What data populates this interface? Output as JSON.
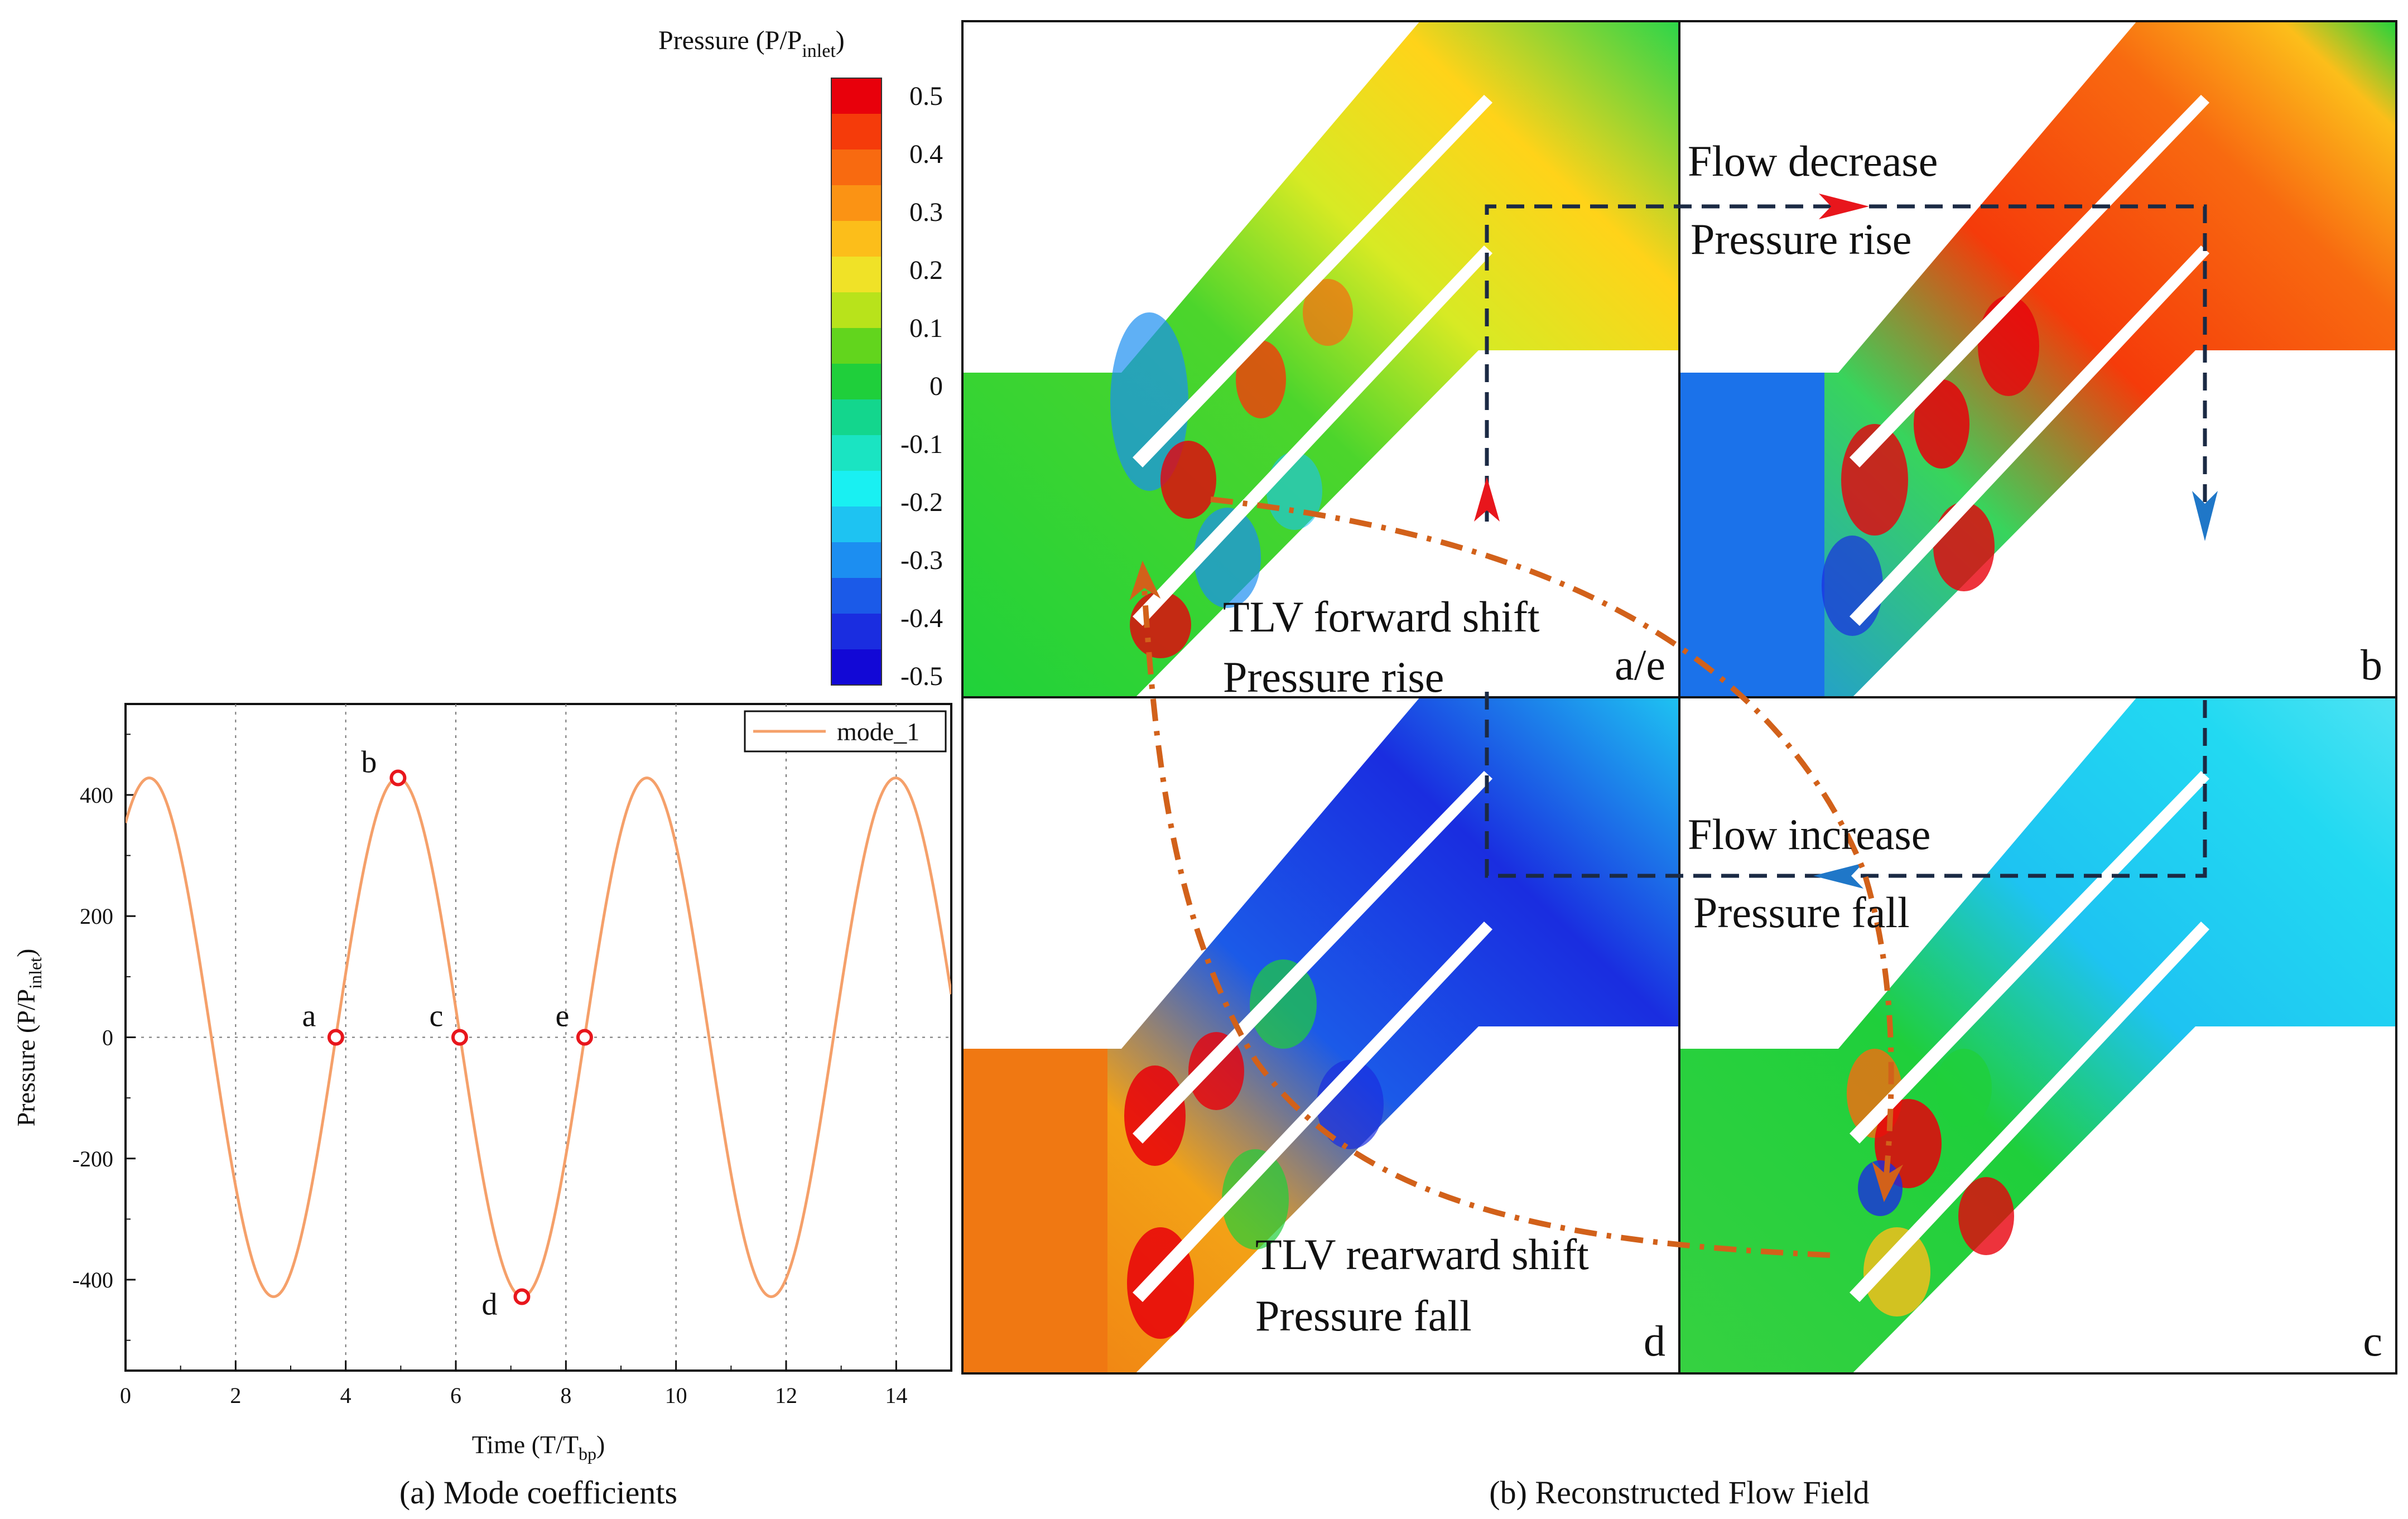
{
  "colorbar": {
    "title_main": "Pressure (P/P",
    "title_sub": "inlet",
    "title_close": ")",
    "ticks": [
      "0.5",
      "0.4",
      "0.3",
      "0.2",
      "0.1",
      "0",
      "-0.1",
      "-0.2",
      "-0.3",
      "-0.4",
      "-0.5"
    ],
    "colors": [
      "#e8000b",
      "#f53b0a",
      "#f86a10",
      "#fb9314",
      "#fcbe1a",
      "#f0e227",
      "#b8e31b",
      "#62d51d",
      "#1fcf3b",
      "#13d68d",
      "#1ae4c2",
      "#19f0f2",
      "#1ec3f2",
      "#1c8ef1",
      "#1b5ae8",
      "#1a2de0",
      "#1208d6"
    ]
  },
  "chart_data": {
    "type": "line",
    "title": "(a) Mode coefficients",
    "xlabel_main": "Time (T/T",
    "xlabel_sub": "bp",
    "xlabel_close": ")",
    "ylabel_main": "Pressure (P/P",
    "ylabel_sub": "inlet",
    "ylabel_close": ")",
    "xlim": [
      0,
      15
    ],
    "ylim": [
      -550,
      550
    ],
    "xticks": [
      0,
      2,
      4,
      6,
      8,
      10,
      12,
      14
    ],
    "yticks": [
      -400,
      -200,
      0,
      200,
      400
    ],
    "series": [
      {
        "name": "mode_1",
        "color": "#f5a06a",
        "amplitude": 428,
        "period": 4.52,
        "x0": 3.82
      }
    ],
    "markers": [
      {
        "label": "a",
        "x": 3.82,
        "y": 0
      },
      {
        "label": "b",
        "x": 4.95,
        "y": 428
      },
      {
        "label": "c",
        "x": 6.07,
        "y": 0
      },
      {
        "label": "d",
        "x": 7.2,
        "y": -428
      },
      {
        "label": "e",
        "x": 8.34,
        "y": 0
      }
    ],
    "legend": "top-right"
  },
  "flow_field": {
    "caption": "(b) Reconstructed Flow Field",
    "panels": [
      "a/e",
      "b",
      "c",
      "d"
    ],
    "annotations": {
      "flow_decrease": "Flow decrease",
      "pressure_rise_top": "Pressure rise",
      "flow_increase": "Flow increase",
      "pressure_fall_mid": "Pressure fall",
      "tlv_forward": "TLV forward shift",
      "pressure_rise_fwd": "Pressure rise",
      "tlv_rearward": "TLV rearward shift",
      "pressure_fall_rear": "Pressure fall"
    },
    "colors": {
      "cycle_box": "#1b2a44",
      "arrow_red": "#e8161c",
      "arrow_blue": "#1f77c8",
      "tlv_path": "#d2611a"
    }
  }
}
